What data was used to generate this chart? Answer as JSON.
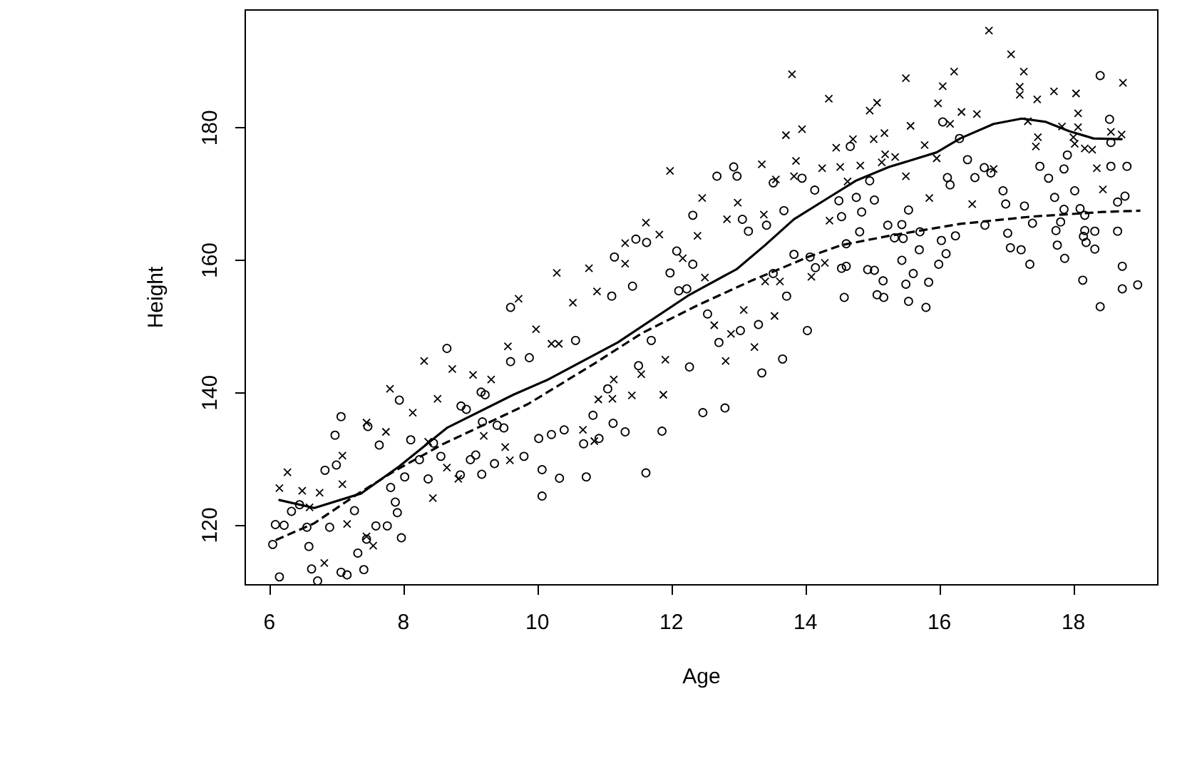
{
  "chart_data": {
    "type": "scatter",
    "xlabel": "Age",
    "ylabel": "Height",
    "xlim": [
      5.64,
      19.26
    ],
    "ylim": [
      111,
      197.8
    ],
    "xticks": [
      6,
      8,
      10,
      12,
      14,
      16,
      18
    ],
    "yticks": [
      120,
      140,
      160,
      180
    ],
    "series": [
      {
        "marker": "cross",
        "color": "#000000",
        "x": [
          6.15,
          6.27,
          6.49,
          6.6,
          6.75,
          6.82,
          7.09,
          7.09,
          7.16,
          7.45,
          7.45,
          7.55,
          7.74,
          7.8,
          8.14,
          8.31,
          8.37,
          8.44,
          8.51,
          8.65,
          8.73,
          8.82,
          9.04,
          9.2,
          9.31,
          9.52,
          9.56,
          9.59,
          9.72,
          9.98,
          10.21,
          10.29,
          10.32,
          10.53,
          10.68,
          10.77,
          10.85,
          10.89,
          10.91,
          11.12,
          11.14,
          11.31,
          11.31,
          11.41,
          11.55,
          11.62,
          11.82,
          11.88,
          11.91,
          11.98,
          12.17,
          12.39,
          12.46,
          12.5,
          12.64,
          12.81,
          12.83,
          12.89,
          12.99,
          13.08,
          13.24,
          13.35,
          13.38,
          13.4,
          13.54,
          13.56,
          13.62,
          13.71,
          13.8,
          13.83,
          13.86,
          13.95,
          14.09,
          14.25,
          14.29,
          14.35,
          14.36,
          14.46,
          14.52,
          14.63,
          14.71,
          14.82,
          14.96,
          15.02,
          15.07,
          15.14,
          15.18,
          15.19,
          15.34,
          15.5,
          15.5,
          15.57,
          15.78,
          15.85,
          15.96,
          15.98,
          16.05,
          16.16,
          16.22,
          16.33,
          16.49,
          16.56,
          16.74,
          16.81,
          17.07,
          17.2,
          17.2,
          17.26,
          17.32,
          17.44,
          17.46,
          17.47,
          17.71,
          17.83,
          18.0,
          18.02,
          18.04,
          18.07,
          18.07,
          18.17,
          18.28,
          18.35,
          18.44,
          18.56,
          18.72,
          18.74
        ],
        "values": [
          125.6,
          128.0,
          125.2,
          122.7,
          124.9,
          114.3,
          126.2,
          130.5,
          120.2,
          135.5,
          118.3,
          116.9,
          134.1,
          140.6,
          137.0,
          144.8,
          132.6,
          124.1,
          139.1,
          128.7,
          143.6,
          127.0,
          142.7,
          133.5,
          142.0,
          131.8,
          147.0,
          129.8,
          154.2,
          149.6,
          147.4,
          158.1,
          147.4,
          153.6,
          134.4,
          158.8,
          132.7,
          155.3,
          139.0,
          139.1,
          142.0,
          162.6,
          159.5,
          139.6,
          142.8,
          165.7,
          163.9,
          139.7,
          145.0,
          173.5,
          160.3,
          163.7,
          169.4,
          157.4,
          150.2,
          144.8,
          166.2,
          148.9,
          168.7,
          152.5,
          146.9,
          174.5,
          166.9,
          156.8,
          151.6,
          172.2,
          156.8,
          178.9,
          188.1,
          172.7,
          175.0,
          179.8,
          157.5,
          173.9,
          159.6,
          184.4,
          166.0,
          177.0,
          174.1,
          171.9,
          178.3,
          174.3,
          182.6,
          178.3,
          183.8,
          174.8,
          179.2,
          176.0,
          175.6,
          187.5,
          172.7,
          180.3,
          177.4,
          169.4,
          175.4,
          183.7,
          186.3,
          180.6,
          188.5,
          182.4,
          168.5,
          182.1,
          194.7,
          173.8,
          191.1,
          186.2,
          185.0,
          188.5,
          181.0,
          177.2,
          184.3,
          178.6,
          185.5,
          180.2,
          178.6,
          177.6,
          185.2,
          182.2,
          180.1,
          176.9,
          176.7,
          173.9,
          170.7,
          179.4,
          179.0,
          186.8
        ]
      },
      {
        "marker": "circle",
        "color": "#000000",
        "x": [
          6.05,
          6.09,
          6.15,
          6.22,
          6.33,
          6.45,
          6.56,
          6.59,
          6.63,
          6.72,
          6.83,
          6.9,
          6.98,
          7.0,
          7.07,
          7.07,
          7.16,
          7.27,
          7.32,
          7.41,
          7.45,
          7.47,
          7.59,
          7.64,
          7.76,
          7.81,
          7.88,
          7.91,
          7.94,
          7.97,
          8.02,
          8.11,
          8.24,
          8.37,
          8.45,
          8.56,
          8.65,
          8.85,
          8.86,
          8.94,
          9.0,
          9.08,
          9.16,
          9.17,
          9.18,
          9.22,
          9.36,
          9.4,
          9.5,
          9.6,
          9.6,
          9.8,
          9.88,
          10.02,
          10.07,
          10.07,
          10.21,
          10.33,
          10.4,
          10.57,
          10.69,
          10.73,
          10.83,
          10.92,
          11.05,
          11.11,
          11.13,
          11.15,
          11.31,
          11.42,
          11.47,
          11.51,
          11.62,
          11.63,
          11.7,
          11.86,
          11.98,
          12.08,
          12.11,
          12.23,
          12.27,
          12.32,
          12.32,
          12.47,
          12.54,
          12.68,
          12.71,
          12.8,
          12.93,
          12.98,
          13.03,
          13.06,
          13.15,
          13.3,
          13.35,
          13.42,
          13.52,
          13.52,
          13.66,
          13.68,
          13.72,
          13.83,
          13.95,
          14.03,
          14.07,
          14.14,
          14.15,
          14.5,
          14.54,
          14.58,
          14.61,
          14.67,
          14.54,
          14.61,
          14.76,
          14.81,
          14.84,
          14.93,
          14.96,
          15.03,
          15.03,
          15.07,
          15.16,
          15.17,
          15.23,
          15.33,
          15.44,
          15.44,
          15.46,
          15.5,
          15.54,
          15.54,
          15.61,
          15.7,
          15.71,
          15.8,
          15.84,
          15.99,
          16.03,
          16.05,
          16.1,
          16.12,
          16.16,
          16.24,
          16.3,
          16.42,
          16.53,
          16.67,
          16.68,
          16.77,
          16.95,
          16.99,
          17.02,
          17.06,
          17.22,
          17.27,
          17.35,
          17.39,
          17.5,
          17.63,
          17.72,
          17.74,
          17.76,
          17.81,
          17.86,
          17.86,
          17.87,
          17.91,
          18.02,
          18.1,
          18.14,
          18.15,
          18.17,
          18.17,
          18.19,
          18.32,
          18.32,
          18.4,
          18.4,
          18.54,
          18.56,
          18.56,
          18.66,
          18.66,
          18.73,
          18.73,
          18.77,
          18.8,
          18.96
        ],
        "values": [
          117.1,
          120.1,
          112.2,
          120.0,
          122.1,
          123.1,
          119.7,
          116.8,
          113.4,
          111.6,
          128.3,
          119.7,
          133.6,
          129.1,
          136.4,
          112.9,
          112.5,
          122.2,
          115.8,
          113.3,
          117.9,
          134.9,
          119.9,
          132.1,
          119.9,
          125.7,
          123.5,
          121.9,
          138.9,
          118.1,
          127.3,
          132.9,
          129.9,
          127.0,
          132.4,
          130.4,
          146.7,
          127.6,
          138.0,
          137.5,
          129.9,
          130.6,
          140.1,
          127.7,
          135.6,
          139.7,
          129.3,
          135.1,
          134.7,
          152.9,
          144.7,
          130.4,
          145.3,
          133.1,
          128.4,
          124.4,
          133.7,
          127.1,
          134.4,
          147.9,
          132.3,
          127.3,
          136.6,
          133.1,
          140.6,
          154.6,
          135.4,
          160.5,
          134.1,
          156.1,
          163.2,
          144.1,
          127.9,
          162.7,
          147.9,
          134.2,
          158.1,
          161.4,
          155.4,
          155.7,
          143.9,
          166.8,
          159.4,
          137.0,
          151.9,
          172.7,
          147.6,
          137.7,
          174.1,
          172.7,
          149.4,
          166.2,
          164.4,
          150.3,
          143.0,
          165.3,
          171.7,
          158.0,
          145.1,
          167.5,
          154.6,
          160.9,
          172.4,
          149.4,
          160.5,
          170.6,
          158.9,
          169.0,
          158.8,
          154.4,
          162.5,
          177.2,
          166.6,
          159.1,
          169.5,
          164.3,
          167.3,
          158.6,
          172.0,
          158.5,
          169.1,
          154.8,
          156.9,
          154.4,
          165.3,
          163.4,
          165.4,
          160.0,
          163.3,
          156.4,
          167.6,
          153.8,
          158.0,
          161.6,
          164.3,
          152.9,
          156.7,
          159.4,
          163.0,
          180.9,
          161.0,
          172.5,
          171.4,
          163.7,
          178.4,
          175.2,
          172.5,
          174.0,
          165.3,
          173.2,
          170.5,
          168.5,
          164.1,
          161.9,
          161.6,
          168.2,
          159.4,
          165.6,
          174.2,
          172.4,
          169.5,
          164.5,
          162.3,
          165.8,
          173.8,
          167.7,
          160.3,
          175.9,
          170.5,
          167.8,
          157.0,
          163.6,
          166.8,
          164.5,
          162.7,
          164.4,
          161.7,
          187.9,
          153.0,
          181.3,
          177.8,
          174.2,
          168.8,
          164.4,
          159.1,
          155.7,
          169.7,
          174.2,
          156.3
        ]
      },
      {
        "type": "line",
        "marker": "none",
        "line_style": "solid",
        "color": "#000000",
        "x": [
          6.15,
          6.67,
          7.37,
          7.94,
          8.65,
          9.64,
          10.14,
          11.2,
          12.27,
          12.98,
          13.4,
          13.83,
          14.4,
          14.75,
          15.25,
          15.96,
          16.31,
          16.81,
          17.23,
          17.59,
          17.94,
          18.3,
          18.72
        ],
        "values": [
          123.8,
          122.6,
          124.8,
          128.9,
          134.7,
          139.7,
          141.9,
          147.6,
          154.8,
          158.7,
          162.3,
          166.2,
          169.8,
          172.0,
          174.1,
          176.3,
          178.4,
          180.6,
          181.4,
          180.9,
          179.5,
          178.4,
          178.3
        ]
      },
      {
        "type": "line",
        "marker": "none",
        "line_style": "dashed",
        "color": "#000000",
        "x": [
          6.04,
          6.67,
          7.3,
          7.87,
          8.58,
          9.86,
          10.85,
          11.56,
          12.41,
          13.19,
          14.04,
          14.54,
          15.25,
          16.31,
          17.37,
          18.44,
          19.0
        ],
        "values": [
          117.5,
          120.3,
          124.6,
          128.2,
          132.2,
          138.3,
          144.4,
          149.0,
          153.3,
          156.9,
          160.5,
          162.3,
          163.7,
          165.5,
          166.6,
          167.3,
          167.5
        ]
      }
    ]
  }
}
